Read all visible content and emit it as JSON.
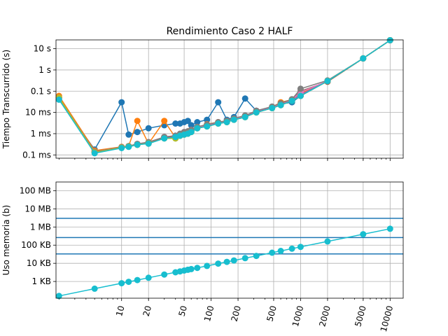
{
  "chart_data": [
    {
      "type": "line",
      "title": "Rendimiento Caso 2 HALF",
      "ylabel": "Tiempo Transcurrido (s)",
      "xscale": "log",
      "yscale": "log",
      "xlim": [
        1.85,
        14000
      ],
      "ylim": [
        7e-05,
        26
      ],
      "grid": true,
      "xticks": [
        10,
        20,
        50,
        100,
        200,
        500,
        1000,
        2000,
        5000,
        10000
      ],
      "yticks": [
        {
          "value": 0.0001,
          "label": "0.1 ms"
        },
        {
          "value": 0.001,
          "label": "1 ms"
        },
        {
          "value": 0.01,
          "label": "10 ms"
        },
        {
          "value": 0.1,
          "label": "0.1 s"
        },
        {
          "value": 1,
          "label": "1 s"
        },
        {
          "value": 10,
          "label": "10 s"
        }
      ],
      "series": [
        {
          "color": "#1f77b4",
          "x": [
            2,
            5,
            10,
            12,
            15,
            20,
            30,
            40,
            45,
            50,
            55,
            60,
            70,
            90,
            120,
            150,
            180,
            240,
            320,
            480,
            600,
            800,
            1000,
            2000,
            5000,
            10000
          ],
          "y": [
            0.04,
            0.00018,
            0.03,
            0.0009,
            0.0012,
            0.0018,
            0.0025,
            0.003,
            0.003,
            0.0035,
            0.004,
            0.0025,
            0.0035,
            0.0045,
            0.03,
            0.0045,
            0.006,
            0.045,
            0.012,
            0.018,
            0.025,
            0.03,
            0.06,
            0.3,
            3.5,
            25
          ]
        },
        {
          "color": "#ff7f0e",
          "x": [
            2,
            5,
            10,
            12,
            15,
            20,
            30,
            40,
            45,
            50,
            55,
            60,
            70,
            90,
            120,
            150,
            180,
            240,
            320,
            480,
            600,
            800,
            1000,
            2000,
            5000,
            10000
          ],
          "y": [
            0.06,
            0.00016,
            0.00024,
            0.00026,
            0.004,
            0.00034,
            0.004,
            0.00065,
            0.0008,
            0.001,
            0.0012,
            0.0015,
            0.002,
            0.0028,
            0.0035,
            0.004,
            0.005,
            0.007,
            0.01,
            0.018,
            0.03,
            0.04,
            0.08,
            0.28,
            3.5,
            25
          ]
        },
        {
          "color": "#2ca02c",
          "x": [
            2,
            5,
            10,
            12,
            15,
            20,
            30,
            40,
            45,
            50,
            55,
            60,
            70,
            90,
            120,
            150,
            180,
            240,
            320,
            480,
            600,
            800,
            1000,
            2000,
            5000,
            10000
          ],
          "y": [
            0.05,
            0.00013,
            0.00022,
            0.00025,
            0.0003,
            0.00035,
            0.0006,
            0.0006,
            0.0008,
            0.0009,
            0.001,
            0.0012,
            0.0018,
            0.0022,
            0.003,
            0.0035,
            0.0045,
            0.006,
            0.01,
            0.016,
            0.022,
            0.035,
            0.06,
            0.3,
            3.5,
            25
          ]
        },
        {
          "color": "#d62728",
          "x": [
            2,
            5,
            10,
            12,
            15,
            20,
            30,
            40,
            45,
            50,
            55,
            60,
            70,
            90,
            120,
            150,
            180,
            240,
            320,
            480,
            600,
            800,
            1000,
            2000,
            5000,
            10000
          ],
          "y": [
            0.05,
            0.00014,
            0.00023,
            0.00025,
            0.0003,
            0.00036,
            0.0007,
            0.0007,
            0.0009,
            0.001,
            0.0011,
            0.0013,
            0.0019,
            0.0024,
            0.0032,
            0.0037,
            0.0048,
            0.0065,
            0.011,
            0.017,
            0.024,
            0.036,
            0.065,
            0.3,
            3.5,
            25
          ]
        },
        {
          "color": "#9467bd",
          "x": [
            2,
            5,
            10,
            12,
            15,
            20,
            30,
            40,
            45,
            50,
            55,
            60,
            70,
            90,
            120,
            150,
            180,
            240,
            320,
            480,
            600,
            800,
            1000,
            2000,
            5000,
            10000
          ],
          "y": [
            0.05,
            0.00014,
            0.00023,
            0.00026,
            0.00032,
            0.00038,
            0.0007,
            0.0008,
            0.0009,
            0.0011,
            0.0012,
            0.0014,
            0.002,
            0.0025,
            0.0033,
            0.0038,
            0.005,
            0.0068,
            0.011,
            0.017,
            0.024,
            0.037,
            0.07,
            0.3,
            3.5,
            25
          ]
        },
        {
          "color": "#8c564b",
          "x": [
            2,
            5,
            10,
            12,
            15,
            20,
            30,
            40,
            45,
            50,
            55,
            60,
            70,
            90,
            120,
            150,
            180,
            240,
            320,
            480,
            600,
            800,
            1000,
            2000,
            5000,
            10000
          ],
          "y": [
            0.05,
            0.00014,
            0.00023,
            0.00026,
            0.00033,
            0.00038,
            0.0007,
            0.0008,
            0.0009,
            0.0011,
            0.0012,
            0.0014,
            0.002,
            0.0026,
            0.0034,
            0.004,
            0.005,
            0.007,
            0.012,
            0.018,
            0.026,
            0.04,
            0.1,
            0.28,
            3.5,
            25
          ]
        },
        {
          "color": "#e377c2",
          "x": [
            2,
            5,
            10,
            12,
            15,
            20,
            30,
            40,
            45,
            50,
            55,
            60,
            70,
            90,
            120,
            150,
            180,
            240,
            320,
            480,
            600,
            800,
            1000,
            2000,
            5000,
            10000
          ],
          "y": [
            0.05,
            0.00014,
            0.00023,
            0.00026,
            0.00033,
            0.0004,
            0.0007,
            0.0008,
            0.0009,
            0.0012,
            0.0012,
            0.0015,
            0.002,
            0.0026,
            0.0034,
            0.004,
            0.005,
            0.007,
            0.012,
            0.018,
            0.026,
            0.04,
            0.09,
            0.3,
            3.5,
            25
          ]
        },
        {
          "color": "#7f7f7f",
          "x": [
            2,
            5,
            10,
            12,
            15,
            20,
            30,
            40,
            45,
            50,
            55,
            60,
            70,
            90,
            120,
            150,
            180,
            240,
            320,
            480,
            600,
            800,
            1000,
            2000,
            5000,
            10000
          ],
          "y": [
            0.05,
            0.00014,
            0.00023,
            0.00026,
            0.00033,
            0.0004,
            0.0007,
            0.0008,
            0.001,
            0.0012,
            0.0013,
            0.0015,
            0.0021,
            0.0027,
            0.0035,
            0.0041,
            0.0052,
            0.0072,
            0.012,
            0.019,
            0.027,
            0.042,
            0.13,
            0.32,
            3.5,
            25
          ]
        },
        {
          "color": "#bcbd22",
          "x": [
            2,
            5,
            10,
            12,
            15,
            20,
            30,
            40,
            45,
            50,
            55,
            60,
            70,
            90,
            120,
            150,
            180,
            240,
            320,
            480,
            600,
            800,
            1000,
            2000,
            5000,
            10000
          ],
          "y": [
            0.05,
            0.00013,
            0.00022,
            0.00025,
            0.0003,
            0.00035,
            0.0006,
            0.0006,
            0.0008,
            0.0009,
            0.001,
            0.0012,
            0.0018,
            0.0022,
            0.003,
            0.0035,
            0.0045,
            0.006,
            0.01,
            0.016,
            0.022,
            0.035,
            0.06,
            0.3,
            3.5,
            25
          ]
        },
        {
          "color": "#17becf",
          "x": [
            2,
            5,
            10,
            12,
            15,
            20,
            30,
            40,
            45,
            50,
            55,
            60,
            70,
            90,
            120,
            150,
            180,
            240,
            320,
            480,
            600,
            800,
            1000,
            2000,
            5000,
            10000
          ],
          "y": [
            0.04,
            0.00012,
            0.00021,
            0.00024,
            0.0003,
            0.00034,
            0.0006,
            0.0007,
            0.0008,
            0.0009,
            0.001,
            0.0012,
            0.0018,
            0.0022,
            0.003,
            0.0035,
            0.0045,
            0.006,
            0.01,
            0.016,
            0.022,
            0.035,
            0.06,
            0.3,
            3.5,
            25
          ]
        }
      ]
    },
    {
      "type": "line",
      "title": "",
      "ylabel": "Uso memoria (b)",
      "xscale": "log",
      "yscale": "log",
      "xlim": [
        1.85,
        14000
      ],
      "ylim": [
        120,
        300000000
      ],
      "grid": true,
      "xticks": [
        10,
        20,
        50,
        100,
        200,
        500,
        1000,
        2000,
        5000,
        10000
      ],
      "yticks": [
        {
          "value": 1000,
          "label": "1 KB"
        },
        {
          "value": 10000,
          "label": "10 KB"
        },
        {
          "value": 100000,
          "label": "100 KB"
        },
        {
          "value": 1000000,
          "label": "1 MB"
        },
        {
          "value": 10000000,
          "label": "10 MB"
        },
        {
          "value": 100000000,
          "label": "100 MB"
        }
      ],
      "hlines": [
        {
          "y": 32768,
          "color": "#1f77b4"
        },
        {
          "y": 262144,
          "color": "#1f77b4"
        },
        {
          "y": 3000000,
          "color": "#1f77b4"
        }
      ],
      "series": [
        {
          "color": "#17becf",
          "x": [
            2,
            5,
            10,
            12,
            15,
            20,
            30,
            40,
            45,
            50,
            55,
            60,
            70,
            90,
            120,
            150,
            180,
            240,
            320,
            480,
            600,
            800,
            1000,
            2000,
            5000,
            10000
          ],
          "y": [
            160,
            400,
            800,
            960,
            1200,
            1600,
            2400,
            3200,
            3600,
            4000,
            4400,
            4800,
            5600,
            7200,
            9600,
            12000,
            14400,
            19200,
            25600,
            38400,
            48000,
            64000,
            80000,
            160000,
            400000,
            800000
          ]
        }
      ]
    }
  ]
}
